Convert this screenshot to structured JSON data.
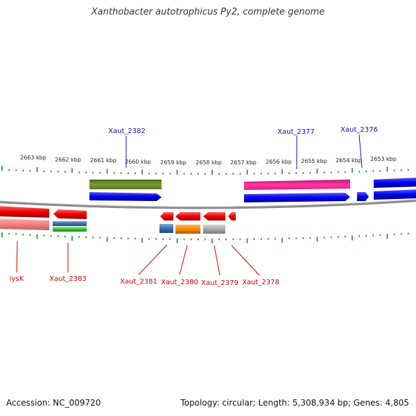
{
  "title": "Xanthobacter autotrophicus Py2, complete genome",
  "footer": {
    "accession": "Accession: NC_009720",
    "summary": "Topology: circular; Length: 5,308,934 bp; Genes: 4,805"
  },
  "colors": {
    "upper_label": "#1010a0",
    "lower_label": "#cc0000",
    "tick": "#1a8a1a",
    "backbone": "#8a8a8a"
  },
  "scale": {
    "unit": "kbp",
    "labels": [
      "2663 kbp",
      "2662 kbp",
      "2661 kbp",
      "2660 kbp",
      "2659 kbp",
      "2658 kbp",
      "2657 kbp",
      "2656 kbp",
      "2655 kbp",
      "2654 kbp",
      "2653 kbp"
    ]
  },
  "upper_labels": [
    "Xaut_2382",
    "Xaut_2377",
    "Xaut_2376"
  ],
  "lower_labels": [
    "lysK",
    "Xaut_2383",
    "Xaut_2381",
    "Xaut_2380",
    "Xaut_2379",
    "Xaut_2378"
  ],
  "feature_colors": [
    "#ff0000",
    "#ff8080",
    "#3a6fb0",
    "#33cc33",
    "#6b8e23",
    "#0000ff",
    "#ff1493",
    "#ff8c00",
    "#a8a8a8"
  ]
}
